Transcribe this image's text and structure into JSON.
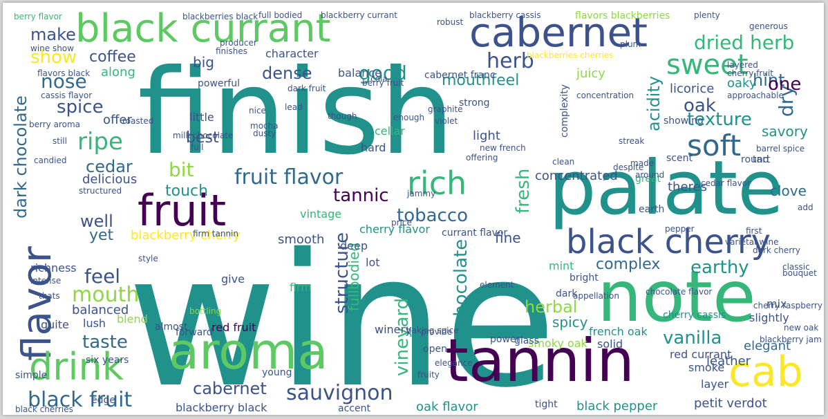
{
  "palette": {
    "teal": "#21918c",
    "green": "#5ec962",
    "lime": "#8fd744",
    "yellow": "#fde725",
    "dark_purple": "#440154",
    "indigo": "#3b528b",
    "blue": "#31688e",
    "seafoam": "#35b779",
    "gray_text": "#b5b5b5"
  },
  "words": [
    {
      "text": "wine",
      "color": "teal"
    },
    {
      "text": "finish",
      "color": "teal"
    },
    {
      "text": "palate",
      "color": "teal"
    },
    {
      "text": "note",
      "color": "seafoam"
    },
    {
      "text": "tannin",
      "color": "dark_purple"
    },
    {
      "text": "aroma",
      "color": "green"
    },
    {
      "text": "flavor",
      "color": "indigo"
    },
    {
      "text": "black currant",
      "color": "green"
    },
    {
      "text": "cabernet",
      "color": "indigo"
    },
    {
      "text": "fruit",
      "color": "dark_purple"
    },
    {
      "text": "drink",
      "color": "green"
    },
    {
      "text": "cab",
      "color": "yellow"
    },
    {
      "text": "black cherry",
      "color": "indigo"
    },
    {
      "text": "rich",
      "color": "seafoam"
    },
    {
      "text": "soft",
      "color": "blue"
    },
    {
      "text": "sweet",
      "color": "seafoam"
    },
    {
      "text": "black fruit",
      "color": "blue"
    },
    {
      "text": "cabernet",
      "color": "indigo"
    },
    {
      "text": "sauvignon",
      "color": "indigo"
    },
    {
      "text": "vanilla",
      "color": "teal"
    },
    {
      "text": "earthy",
      "color": "teal"
    },
    {
      "text": "complex",
      "color": "blue"
    },
    {
      "text": "texture",
      "color": "teal"
    },
    {
      "text": "fruit flavor",
      "color": "blue"
    },
    {
      "text": "tobacco",
      "color": "blue"
    },
    {
      "text": "structure",
      "color": "indigo"
    },
    {
      "text": "chocolate",
      "color": "teal"
    },
    {
      "text": "vineyard",
      "color": "seafoam"
    },
    {
      "text": "dark chocolate",
      "color": "blue"
    },
    {
      "text": "herb",
      "color": "indigo"
    },
    {
      "text": "dried herb",
      "color": "seafoam"
    },
    {
      "text": "good",
      "color": "teal"
    },
    {
      "text": "nose",
      "color": "blue"
    },
    {
      "text": "spice",
      "color": "indigo"
    },
    {
      "text": "ripe",
      "color": "seafoam"
    },
    {
      "text": "cedar",
      "color": "blue"
    },
    {
      "text": "bit",
      "color": "lime"
    },
    {
      "text": "feel",
      "color": "indigo"
    },
    {
      "text": "mouth",
      "color": "lime"
    },
    {
      "text": "taste",
      "color": "blue"
    },
    {
      "text": "well",
      "color": "indigo"
    },
    {
      "text": "yet",
      "color": "blue"
    },
    {
      "text": "tannic",
      "color": "dark_purple"
    },
    {
      "text": "fresh",
      "color": "seafoam"
    },
    {
      "text": "herbal",
      "color": "lime"
    },
    {
      "text": "spicy",
      "color": "teal"
    },
    {
      "text": "oak",
      "color": "indigo"
    },
    {
      "text": "dry",
      "color": "blue"
    },
    {
      "text": "acidity",
      "color": "teal"
    },
    {
      "text": "hint",
      "color": "blue"
    },
    {
      "text": "one",
      "color": "dark_purple"
    },
    {
      "text": "show",
      "color": "yellow"
    },
    {
      "text": "make",
      "color": "indigo"
    },
    {
      "text": "coffee",
      "color": "indigo"
    },
    {
      "text": "dense",
      "color": "indigo"
    },
    {
      "text": "mouthfeel",
      "color": "teal"
    },
    {
      "text": "juicy",
      "color": "lime"
    },
    {
      "text": "licorice",
      "color": "indigo"
    },
    {
      "text": "oaky",
      "color": "teal"
    },
    {
      "text": "best",
      "color": "indigo"
    },
    {
      "text": "savory",
      "color": "teal"
    },
    {
      "text": "touch",
      "color": "teal"
    },
    {
      "text": "elegant",
      "color": "blue"
    },
    {
      "text": "leather",
      "color": "indigo"
    },
    {
      "text": "clove",
      "color": "blue"
    },
    {
      "text": "concentrated",
      "color": "indigo"
    },
    {
      "text": "theres",
      "color": "indigo"
    },
    {
      "text": "blackberry cherry",
      "color": "yellow"
    },
    {
      "text": "cherry flavor",
      "color": "teal"
    },
    {
      "text": "oak flavor",
      "color": "teal"
    },
    {
      "text": "black pepper",
      "color": "teal"
    },
    {
      "text": "petit verdot",
      "color": "indigo"
    },
    {
      "text": "balanced",
      "color": "indigo"
    },
    {
      "text": "smooth",
      "color": "indigo"
    },
    {
      "text": "fullbodied",
      "color": "seafoam"
    },
    {
      "text": "delicious",
      "color": "indigo"
    },
    {
      "text": "offer",
      "color": "indigo"
    },
    {
      "text": "along",
      "color": "seafoam"
    },
    {
      "text": "give",
      "color": "indigo"
    },
    {
      "text": "fine",
      "color": "indigo"
    },
    {
      "text": "light",
      "color": "indigo"
    },
    {
      "text": "little",
      "color": "indigo"
    },
    {
      "text": "big",
      "color": "indigo"
    },
    {
      "text": "balance",
      "color": "indigo"
    },
    {
      "text": "character",
      "color": "indigo"
    },
    {
      "text": "richness",
      "color": "indigo"
    },
    {
      "text": "red fruit",
      "color": "dark_purple"
    },
    {
      "text": "cellar",
      "color": "seafoam"
    },
    {
      "text": "firm",
      "color": "seafoam"
    },
    {
      "text": "lush",
      "color": "indigo"
    },
    {
      "text": "slightly",
      "color": "indigo"
    },
    {
      "text": "smoke",
      "color": "indigo"
    },
    {
      "text": "layer",
      "color": "indigo"
    },
    {
      "text": "blackberry black",
      "color": "indigo"
    },
    {
      "text": "red currant",
      "color": "indigo"
    },
    {
      "text": "french oak",
      "color": "teal"
    },
    {
      "text": "smoky oak",
      "color": "lime"
    },
    {
      "text": "solid",
      "color": "indigo"
    },
    {
      "text": "mint",
      "color": "seafoam"
    },
    {
      "text": "quite",
      "color": "indigo"
    },
    {
      "text": "blend",
      "color": "lime"
    },
    {
      "text": "deep",
      "color": "indigo"
    },
    {
      "text": "winery",
      "color": "indigo"
    },
    {
      "text": "lot",
      "color": "indigo"
    },
    {
      "text": "cherry cassis",
      "color": "teal"
    },
    {
      "text": "bright",
      "color": "indigo"
    },
    {
      "text": "dark",
      "color": "indigo"
    },
    {
      "text": "mix",
      "color": "indigo"
    },
    {
      "text": "hard",
      "color": "indigo"
    },
    {
      "text": "vintage",
      "color": "seafoam"
    },
    {
      "text": "currant flavor",
      "color": "indigo"
    },
    {
      "text": "almost",
      "color": "indigo"
    },
    {
      "text": "six years",
      "color": "indigo"
    },
    {
      "text": "edge",
      "color": "indigo"
    },
    {
      "text": "simple",
      "color": "indigo"
    },
    {
      "text": "forward",
      "color": "indigo"
    },
    {
      "text": "accent",
      "color": "indigo"
    },
    {
      "text": "power",
      "color": "indigo"
    },
    {
      "text": "glass",
      "color": "indigo"
    },
    {
      "text": "open",
      "color": "indigo"
    },
    {
      "text": "tight",
      "color": "indigo"
    },
    {
      "text": "young",
      "color": "indigo"
    },
    {
      "text": "berry flavor",
      "color": "seafoam"
    },
    {
      "text": "blackberries black",
      "color": "indigo"
    },
    {
      "text": "blackberry currant",
      "color": "indigo"
    },
    {
      "text": "blackberry cassis",
      "color": "indigo"
    },
    {
      "text": "flavors blackberries",
      "color": "lime"
    },
    {
      "text": "full bodied",
      "color": "indigo"
    },
    {
      "text": "plenty",
      "color": "indigo"
    },
    {
      "text": "robust",
      "color": "indigo"
    },
    {
      "text": "generous",
      "color": "indigo"
    },
    {
      "text": "cabernet franc",
      "color": "indigo"
    },
    {
      "text": "berry fruit",
      "color": "indigo"
    },
    {
      "text": "dark fruit",
      "color": "indigo"
    },
    {
      "text": "powerful",
      "color": "indigo"
    },
    {
      "text": "producer",
      "color": "indigo"
    },
    {
      "text": "finishes",
      "color": "indigo"
    },
    {
      "text": "strong",
      "color": "indigo"
    },
    {
      "text": "graphite",
      "color": "indigo"
    },
    {
      "text": "complexity",
      "color": "indigo"
    },
    {
      "text": "showing",
      "color": "indigo"
    },
    {
      "text": "round",
      "color": "indigo"
    },
    {
      "text": "tart",
      "color": "indigo"
    },
    {
      "text": "scent",
      "color": "indigo"
    },
    {
      "text": "great",
      "color": "seafoam"
    },
    {
      "text": "earth",
      "color": "indigo"
    },
    {
      "text": "cedar flavor",
      "color": "indigo"
    },
    {
      "text": "barrel spice",
      "color": "indigo"
    },
    {
      "text": "cherry fruit",
      "color": "indigo"
    },
    {
      "text": "layered",
      "color": "indigo"
    },
    {
      "text": "approachable",
      "color": "indigo"
    },
    {
      "text": "concentration",
      "color": "indigo"
    },
    {
      "text": "clean",
      "color": "indigo"
    },
    {
      "text": "jammy",
      "color": "indigo"
    },
    {
      "text": "new french",
      "color": "indigo"
    },
    {
      "text": "offering",
      "color": "indigo"
    },
    {
      "text": "mocha",
      "color": "indigo"
    },
    {
      "text": "nice",
      "color": "indigo"
    },
    {
      "text": "dusty",
      "color": "indigo"
    },
    {
      "text": "violet",
      "color": "indigo"
    },
    {
      "text": "still",
      "color": "indigo"
    },
    {
      "text": "full",
      "color": "indigo"
    },
    {
      "text": "roasted",
      "color": "indigo"
    },
    {
      "text": "candied",
      "color": "indigo"
    },
    {
      "text": "structured",
      "color": "indigo"
    },
    {
      "text": "thats",
      "color": "indigo"
    },
    {
      "text": "intense",
      "color": "indigo"
    },
    {
      "text": "firm tannin",
      "color": "indigo"
    },
    {
      "text": "varietal wine",
      "color": "indigo"
    },
    {
      "text": "chocolate flavor",
      "color": "indigo"
    },
    {
      "text": "new oak",
      "color": "indigo"
    },
    {
      "text": "bouquet",
      "color": "indigo"
    },
    {
      "text": "classic",
      "color": "indigo"
    },
    {
      "text": "provide",
      "color": "indigo"
    },
    {
      "text": "element",
      "color": "indigo"
    },
    {
      "text": "appellation",
      "color": "indigo"
    },
    {
      "text": "bottling",
      "color": "lime"
    },
    {
      "text": "baking spice",
      "color": "indigo"
    },
    {
      "text": "fruity",
      "color": "indigo"
    },
    {
      "text": "price",
      "color": "indigo"
    },
    {
      "text": "lead",
      "color": "indigo"
    },
    {
      "text": "enough",
      "color": "indigo"
    },
    {
      "text": "though",
      "color": "indigo"
    },
    {
      "text": "milk chocolate",
      "color": "indigo"
    },
    {
      "text": "dark cherry",
      "color": "indigo"
    },
    {
      "text": "style",
      "color": "indigo"
    },
    {
      "text": "first",
      "color": "indigo"
    },
    {
      "text": "add",
      "color": "indigo"
    },
    {
      "text": "pepper",
      "color": "indigo"
    },
    {
      "text": "despite",
      "color": "indigo"
    },
    {
      "text": "made",
      "color": "indigo"
    },
    {
      "text": "around",
      "color": "indigo"
    },
    {
      "text": "streak",
      "color": "indigo"
    },
    {
      "text": "elegance",
      "color": "indigo"
    },
    {
      "text": "cola",
      "color": "indigo"
    },
    {
      "text": "plum",
      "color": "indigo"
    },
    {
      "text": "cherry raspberry",
      "color": "indigo"
    },
    {
      "text": "blackberry jam",
      "color": "indigo"
    },
    {
      "text": "black cherries",
      "color": "indigo"
    },
    {
      "text": "cassis flavor",
      "color": "indigo"
    },
    {
      "text": "berry aroma",
      "color": "indigo"
    },
    {
      "text": "wine show",
      "color": "indigo"
    },
    {
      "text": "flavors black",
      "color": "indigo"
    },
    {
      "text": "blackberries cherries",
      "color": "yellow"
    }
  ]
}
